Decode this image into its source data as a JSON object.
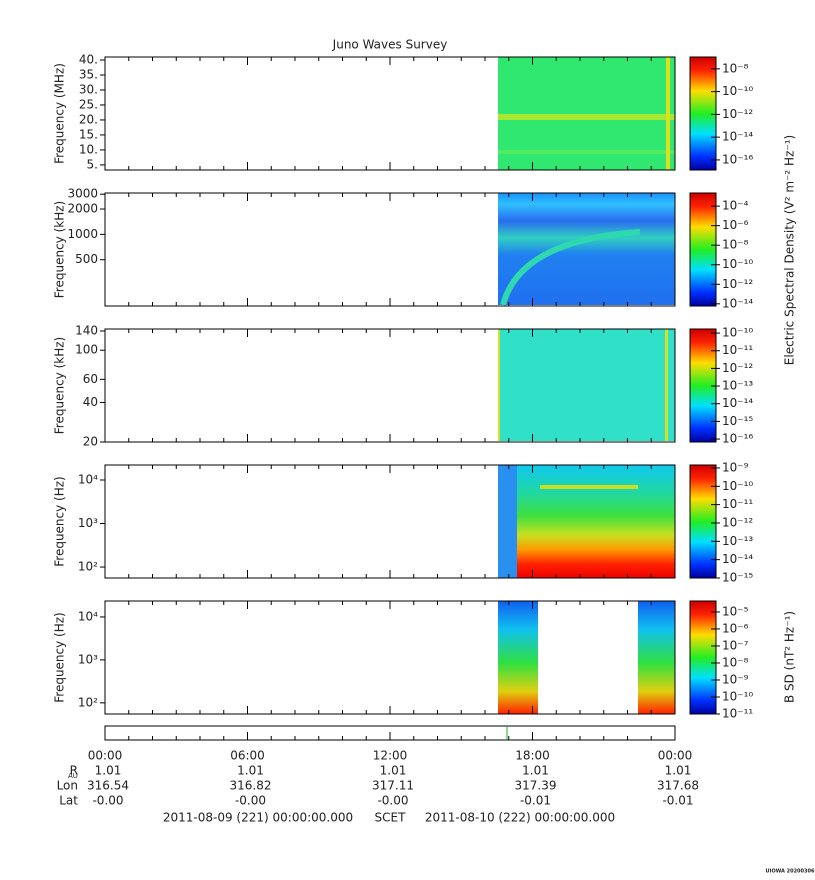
{
  "chart_data": {
    "type": "spectrogram",
    "title": "Juno Waves Survey",
    "xlim": [
      0,
      24
    ],
    "xticks": [
      {
        "value": 0,
        "label": "00:00"
      },
      {
        "value": 6,
        "label": "06:00"
      },
      {
        "value": 12,
        "label": "12:00"
      },
      {
        "value": 18,
        "label": "18:00"
      },
      {
        "value": 24,
        "label": "00:00"
      }
    ],
    "panels": [
      {
        "ylabel": "Frequency (MHz)",
        "log": false,
        "ylim": [
          3.3,
          41
        ],
        "yticks": [
          {
            "value": 5,
            "label": "5."
          },
          {
            "value": 10,
            "label": "10."
          },
          {
            "value": 15,
            "label": "15."
          },
          {
            "value": 20,
            "label": "20."
          },
          {
            "value": 25,
            "label": "25."
          },
          {
            "value": 30,
            "label": "30."
          },
          {
            "value": 35,
            "label": "35."
          },
          {
            "value": 40,
            "label": "40."
          }
        ],
        "clim": [
          1.3e-17,
          1.1e-07
        ],
        "cticks": [
          {
            "value": 1e-08,
            "label": "10⁻⁸"
          },
          {
            "value": 1e-10,
            "label": "10⁻¹⁰"
          },
          {
            "value": 1e-12,
            "label": "10⁻¹²"
          },
          {
            "value": 1e-14,
            "label": "10⁻¹⁴"
          },
          {
            "value": 1e-16,
            "label": "10⁻¹⁶"
          }
        ]
      },
      {
        "ylabel": "Frequency (kHz)",
        "log": true,
        "ylim": [
          141,
          3100
        ],
        "yticks": [
          500,
          1000,
          2000,
          3000
        ],
        "clim": [
          6e-15,
          0.0022
        ],
        "cticks": [
          {
            "value": 0.0001,
            "label": "10⁻⁴"
          },
          {
            "value": 1e-06,
            "label": "10⁻⁶"
          },
          {
            "value": 1e-08,
            "label": "10⁻⁸"
          },
          {
            "value": 1e-10,
            "label": "10⁻¹⁰"
          },
          {
            "value": 1e-12,
            "label": "10⁻¹²"
          },
          {
            "value": 1e-14,
            "label": "10⁻¹⁴"
          }
        ]
      },
      {
        "ylabel": "Frequency (kHz)",
        "log": true,
        "ylim": [
          20,
          145
        ],
        "yticks": [
          20,
          40,
          60,
          100,
          140
        ],
        "clim": [
          6.8e-17,
          1.7e-10
        ],
        "cticks": [
          {
            "value": 1e-10,
            "label": "10⁻¹⁰"
          },
          {
            "value": 1e-11,
            "label": "10⁻¹¹"
          },
          {
            "value": 1e-12,
            "label": "10⁻¹²"
          },
          {
            "value": 1e-13,
            "label": "10⁻¹³"
          },
          {
            "value": 1e-14,
            "label": "10⁻¹⁴"
          },
          {
            "value": 1e-15,
            "label": "10⁻¹⁵"
          },
          {
            "value": 1e-16,
            "label": "10⁻¹⁶"
          }
        ]
      },
      {
        "ylabel": "Frequency (Hz)",
        "log": true,
        "ylim": [
          56,
          22100
        ],
        "yticks": [
          {
            "value": 100,
            "label": "10²"
          },
          {
            "value": 1000,
            "label": "10³"
          },
          {
            "value": 10000,
            "label": "10⁴"
          }
        ],
        "clim": [
          1e-15,
          1.45e-09
        ],
        "cticks": [
          {
            "value": 1e-09,
            "label": "10⁻⁹"
          },
          {
            "value": 1e-10,
            "label": "10⁻¹⁰"
          },
          {
            "value": 1e-11,
            "label": "10⁻¹¹"
          },
          {
            "value": 1e-12,
            "label": "10⁻¹²"
          },
          {
            "value": 1e-13,
            "label": "10⁻¹³"
          },
          {
            "value": 1e-14,
            "label": "10⁻¹⁴"
          },
          {
            "value": 1e-15,
            "label": "10⁻¹⁵"
          }
        ]
      },
      {
        "ylabel": "Frequency (Hz)",
        "log": true,
        "ylim": [
          55,
          23500
        ],
        "yticks": [
          {
            "value": 100,
            "label": "10²"
          },
          {
            "value": 1000,
            "label": "10³"
          },
          {
            "value": 10000,
            "label": "10⁴"
          }
        ],
        "clim": [
          1e-11,
          4.4e-05
        ],
        "cticks": [
          {
            "value": 1e-05,
            "label": "10⁻⁵"
          },
          {
            "value": 1e-06,
            "label": "10⁻⁶"
          },
          {
            "value": 1e-07,
            "label": "10⁻⁷"
          },
          {
            "value": 1e-08,
            "label": "10⁻⁸"
          },
          {
            "value": 1e-09,
            "label": "10⁻⁹"
          },
          {
            "value": 1e-10,
            "label": "10⁻¹⁰"
          },
          {
            "value": 1e-11,
            "label": "10⁻¹¹"
          }
        ]
      }
    ],
    "colorbar_labels": [
      "Electric Spectral Density (V² m⁻² Hz⁻¹)",
      "B SD (nT² Hz⁻¹)"
    ],
    "ephemeris": [
      {
        "label": "R",
        "subscript": "AU",
        "values": [
          "1.01",
          "1.01",
          "1.01",
          "1.01",
          "1.01"
        ]
      },
      {
        "label": "Lon",
        "values": [
          "316.54",
          "316.82",
          "317.11",
          "317.39",
          "317.68"
        ]
      },
      {
        "label": "Lat",
        "values": [
          "-0.00",
          "-0.00",
          "-0.00",
          "-0.01",
          "-0.01"
        ]
      }
    ],
    "footer": {
      "start": "2011-08-09 (221) 00:00:00.000",
      "frame": "SCET",
      "end": "2011-08-10 (222) 00:00:00.000"
    },
    "stamp": "UIOWA 20200306"
  }
}
